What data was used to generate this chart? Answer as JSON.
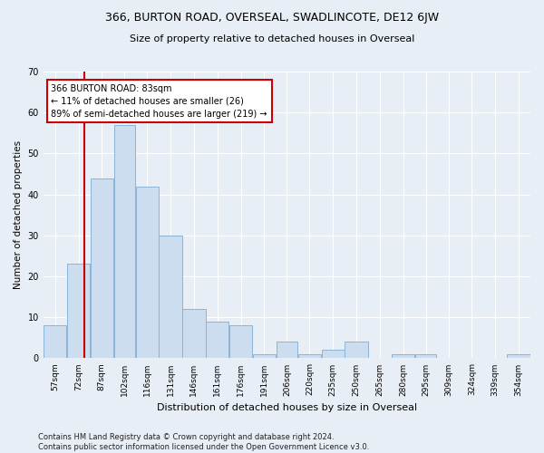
{
  "title": "366, BURTON ROAD, OVERSEAL, SWADLINCOTE, DE12 6JW",
  "subtitle": "Size of property relative to detached houses in Overseal",
  "xlabel": "Distribution of detached houses by size in Overseal",
  "ylabel": "Number of detached properties",
  "bar_color": "#ccddf0",
  "bar_edge_color": "#8ab4d8",
  "categories": [
    "57sqm",
    "72sqm",
    "87sqm",
    "102sqm",
    "116sqm",
    "131sqm",
    "146sqm",
    "161sqm",
    "176sqm",
    "191sqm",
    "206sqm",
    "220sqm",
    "235sqm",
    "250sqm",
    "265sqm",
    "280sqm",
    "295sqm",
    "309sqm",
    "324sqm",
    "339sqm",
    "354sqm"
  ],
  "values": [
    8,
    23,
    44,
    57,
    42,
    30,
    12,
    9,
    8,
    1,
    4,
    1,
    2,
    4,
    0,
    1,
    1,
    0,
    0,
    0,
    1
  ],
  "bin_edges": [
    57,
    72,
    87,
    102,
    116,
    131,
    146,
    161,
    176,
    191,
    206,
    220,
    235,
    250,
    265,
    280,
    295,
    309,
    324,
    339,
    354,
    369
  ],
  "ylim": [
    0,
    70
  ],
  "yticks": [
    0,
    10,
    20,
    30,
    40,
    50,
    60,
    70
  ],
  "vline_x": 83,
  "vline_color": "#cc0000",
  "annotation_text": "366 BURTON ROAD: 83sqm\n← 11% of detached houses are smaller (26)\n89% of semi-detached houses are larger (219) →",
  "annotation_box_color": "#ffffff",
  "annotation_box_edge": "#cc0000",
  "footnote": "Contains HM Land Registry data © Crown copyright and database right 2024.\nContains public sector information licensed under the Open Government Licence v3.0.",
  "bg_color": "#e8eef5",
  "axes_bg_color": "#e8eef5",
  "title_fontsize": 9,
  "subtitle_fontsize": 8,
  "footnote_fontsize": 6,
  "ylabel_fontsize": 7.5,
  "xlabel_fontsize": 8
}
